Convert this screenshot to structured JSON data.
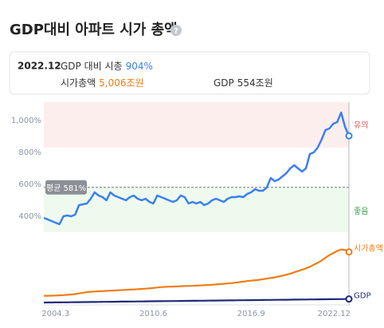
{
  "chart_data": {
    "type": "line",
    "title": "GDP대비 아파트 시가 총액",
    "tooltip": {
      "date": "2022.12",
      "items": [
        {
          "label": "GDP 대비 시총",
          "value": "904%",
          "color": "#3b7ff0"
        },
        {
          "label": "시가총액",
          "value": "5,006조원",
          "color": "#ef7d12"
        },
        {
          "label": "GDP",
          "value": "554조원",
          "color": "#333333"
        }
      ]
    },
    "categories": [
      null,
      null,
      null,
      "2004.3",
      null,
      null,
      null,
      null,
      null,
      null,
      null,
      null,
      null,
      null,
      null,
      null,
      null,
      null,
      null,
      null,
      null,
      null,
      null,
      null,
      null,
      null,
      null,
      null,
      "2010.6",
      null,
      null,
      null,
      null,
      null,
      null,
      null,
      null,
      null,
      null,
      null,
      null,
      null,
      null,
      null,
      null,
      null,
      null,
      null,
      null,
      null,
      null,
      null,
      null,
      "2016.9",
      null,
      null,
      null,
      null,
      null,
      null,
      null,
      null,
      null,
      null,
      null,
      null,
      null,
      null,
      null,
      null,
      null,
      null,
      null,
      null,
      null,
      null,
      null,
      null,
      "2022.12"
    ],
    "ylim": [
      -155,
      1115
    ],
    "yticks": [
      {
        "value": 400,
        "label": "400%"
      },
      {
        "value": 600,
        "label": "600%"
      },
      {
        "value": 800,
        "label": "800%"
      },
      {
        "value": 1000,
        "label": "1,000%"
      }
    ],
    "y2lim": [
      0,
      19170
    ],
    "grid": false,
    "average": 581,
    "average_label": "평균 581%",
    "zones": [
      {
        "label": "유의",
        "from": 830,
        "to": 1115,
        "color": "#fdeeee",
        "text_color": "#d9534f"
      },
      {
        "label": "좋음",
        "from": 300,
        "to": 581,
        "color": "#eefaee",
        "text_color": "#3a9e4a"
      }
    ],
    "series": [
      {
        "color": "#3b7ff0",
        "values": [
          390,
          380,
          370,
          360,
          350,
          400,
          405,
          400,
          410,
          470,
          475,
          480,
          510,
          550,
          530,
          520,
          500,
          550,
          530,
          520,
          510,
          500,
          520,
          530,
          510,
          500,
          510,
          490,
          480,
          530,
          520,
          510,
          500,
          490,
          500,
          530,
          520,
          480,
          490,
          480,
          490,
          470,
          480,
          500,
          510,
          500,
          490,
          510,
          520,
          520,
          525,
          520,
          540,
          550,
          570,
          560,
          560,
          580,
          640,
          620,
          630,
          650,
          670,
          700,
          720,
          700,
          680,
          700,
          790,
          800,
          830,
          880,
          940,
          950,
          980,
          990,
          1050,
          960,
          904
        ]
      },
      {
        "name": "시가총액",
        "axis": "y2",
        "color": "#ef7d12",
        "values": [
          850,
          860,
          870,
          880,
          900,
          920,
          950,
          980,
          1020,
          1080,
          1150,
          1200,
          1240,
          1260,
          1280,
          1300,
          1320,
          1340,
          1360,
          1380,
          1400,
          1420,
          1440,
          1460,
          1480,
          1500,
          1530,
          1560,
          1600,
          1640,
          1680,
          1700,
          1720,
          1730,
          1740,
          1760,
          1780,
          1790,
          1800,
          1820,
          1840,
          1860,
          1880,
          1900,
          1930,
          1960,
          1990,
          2020,
          2060,
          2100,
          2150,
          2200,
          2250,
          2290,
          2330,
          2370,
          2420,
          2480,
          2540,
          2600,
          2680,
          2760,
          2850,
          2950,
          3080,
          3200,
          3320,
          3450,
          3600,
          3800,
          3980,
          4200,
          4450,
          4700,
          4900,
          5100,
          5230,
          5200,
          5006
        ]
      },
      {
        "name": "GDP",
        "axis": "y2",
        "color": "#1f2a78",
        "values": [
          220,
          224,
          228,
          232,
          237,
          241,
          245,
          250,
          254,
          258,
          263,
          267,
          271,
          275,
          280,
          284,
          288,
          293,
          297,
          301,
          306,
          310,
          314,
          318,
          323,
          327,
          331,
          336,
          340,
          344,
          349,
          353,
          357,
          361,
          366,
          370,
          374,
          379,
          383,
          387,
          392,
          396,
          400,
          404,
          409,
          413,
          417,
          422,
          426,
          430,
          435,
          439,
          443,
          447,
          452,
          456,
          460,
          465,
          469,
          473,
          478,
          482,
          486,
          490,
          495,
          499,
          503,
          508,
          512,
          516,
          521,
          525,
          529,
          533,
          538,
          542,
          546,
          550,
          554
        ]
      }
    ]
  }
}
